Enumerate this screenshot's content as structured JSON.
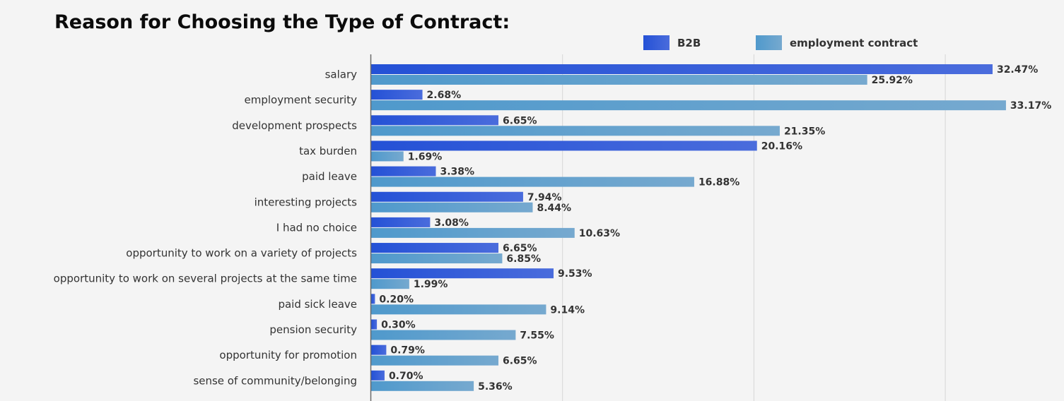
{
  "chart_data": {
    "type": "bar",
    "orientation": "horizontal",
    "title": "Reason for Choosing the Type of Contract:",
    "xlabel": "",
    "ylabel": "",
    "xlim": [
      0,
      36
    ],
    "grid": true,
    "legend_position": "top-right",
    "value_suffix": "%",
    "categories": [
      "salary",
      "employment security",
      "development prospects",
      "tax burden",
      "paid leave",
      "interesting projects",
      "I had no choice",
      "opportunity to work on a variety of projects",
      "opportunity to work on several projects at the same time",
      "paid sick leave",
      "pension security",
      "opportunity for promotion",
      "sense of community/belonging"
    ],
    "series": [
      {
        "name": "B2B",
        "color": "#2b55d8",
        "values": [
          32.47,
          2.68,
          6.65,
          20.16,
          3.38,
          7.94,
          3.08,
          6.65,
          9.53,
          0.2,
          0.3,
          0.79,
          0.7
        ]
      },
      {
        "name": "employment contract",
        "color": "#5b9ecb",
        "values": [
          25.92,
          33.17,
          21.35,
          1.69,
          16.88,
          8.44,
          10.63,
          6.85,
          1.99,
          9.14,
          7.55,
          6.65,
          5.36
        ]
      }
    ]
  }
}
